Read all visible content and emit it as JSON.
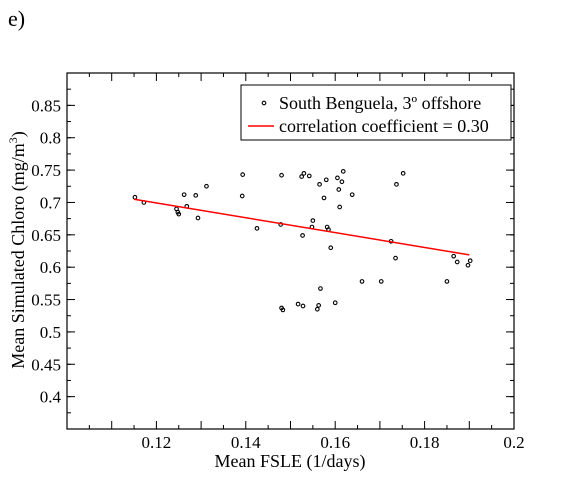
{
  "panel_label": "e)",
  "chart_data": {
    "type": "scatter",
    "title": "",
    "xlabel": "Mean FSLE (1/days)",
    "ylabel": "Mean Simulated Chloro (mg/m",
    "ylabel_sup": "3",
    "ylabel_close": ")",
    "xlim": [
      0.1,
      0.2
    ],
    "ylim": [
      0.35,
      0.9
    ],
    "xticks": [
      0.12,
      0.14,
      0.16,
      0.18,
      0.2
    ],
    "xtick_labels": [
      "0.12",
      "0.14",
      "0.16",
      "0.18",
      "0.2"
    ],
    "yticks": [
      0.4,
      0.45,
      0.5,
      0.55,
      0.6,
      0.65,
      0.7,
      0.75,
      0.8,
      0.85
    ],
    "ytick_labels": [
      "0.4",
      "0.45",
      "0.5",
      "0.55",
      "0.6",
      "0.65",
      "0.7",
      "0.75",
      "0.8",
      "0.85"
    ],
    "grid": false,
    "legend_position": "top-right",
    "series": [
      {
        "name": "South Benguela, 3º offshore",
        "kind": "scatter",
        "color": "#000000",
        "points": [
          [
            0.1152,
            0.708
          ],
          [
            0.1172,
            0.7
          ],
          [
            0.1245,
            0.69
          ],
          [
            0.1248,
            0.685
          ],
          [
            0.125,
            0.682
          ],
          [
            0.1262,
            0.712
          ],
          [
            0.1268,
            0.694
          ],
          [
            0.1288,
            0.711
          ],
          [
            0.1293,
            0.676
          ],
          [
            0.1312,
            0.725
          ],
          [
            0.1392,
            0.71
          ],
          [
            0.1393,
            0.743
          ],
          [
            0.1425,
            0.66
          ],
          [
            0.1478,
            0.666
          ],
          [
            0.148,
            0.742
          ],
          [
            0.148,
            0.537
          ],
          [
            0.1483,
            0.534
          ],
          [
            0.1517,
            0.543
          ],
          [
            0.1525,
            0.74
          ],
          [
            0.1527,
            0.649
          ],
          [
            0.1528,
            0.54
          ],
          [
            0.153,
            0.745
          ],
          [
            0.1542,
            0.741
          ],
          [
            0.1548,
            0.662
          ],
          [
            0.155,
            0.672
          ],
          [
            0.156,
            0.535
          ],
          [
            0.1563,
            0.541
          ],
          [
            0.1565,
            0.728
          ],
          [
            0.1567,
            0.567
          ],
          [
            0.1575,
            0.707
          ],
          [
            0.158,
            0.735
          ],
          [
            0.1582,
            0.662
          ],
          [
            0.1585,
            0.658
          ],
          [
            0.159,
            0.63
          ],
          [
            0.16,
            0.545
          ],
          [
            0.1605,
            0.738
          ],
          [
            0.1608,
            0.72
          ],
          [
            0.161,
            0.693
          ],
          [
            0.1615,
            0.732
          ],
          [
            0.1618,
            0.748
          ],
          [
            0.1638,
            0.712
          ],
          [
            0.166,
            0.578
          ],
          [
            0.1703,
            0.578
          ],
          [
            0.1725,
            0.64
          ],
          [
            0.1735,
            0.614
          ],
          [
            0.1737,
            0.728
          ],
          [
            0.1752,
            0.745
          ],
          [
            0.185,
            0.578
          ],
          [
            0.1865,
            0.617
          ],
          [
            0.1873,
            0.608
          ],
          [
            0.1897,
            0.603
          ],
          [
            0.1902,
            0.61
          ]
        ]
      },
      {
        "name": "correlation coefficient = 0.30",
        "kind": "line",
        "color": "#ff0000",
        "points": [
          [
            0.115,
            0.705
          ],
          [
            0.19,
            0.619
          ]
        ]
      }
    ]
  }
}
